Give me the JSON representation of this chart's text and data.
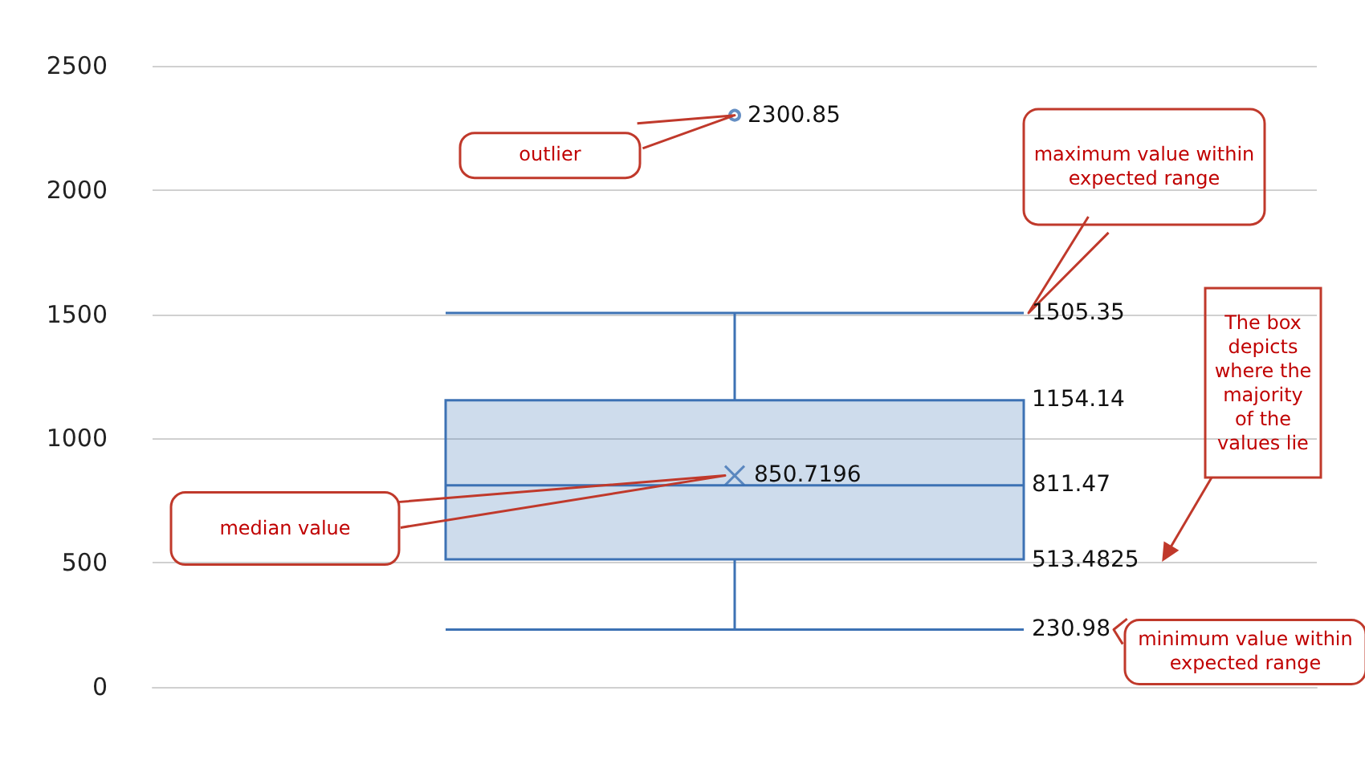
{
  "chart_data": {
    "type": "box",
    "categories": [
      null
    ],
    "boxes": [
      {
        "low": 230.98,
        "q1": 513.4825,
        "median": 811.47,
        "q3": 1154.14,
        "high": 1505.35,
        "mean": 850.7196,
        "outliers": [
          2300.85
        ]
      }
    ],
    "color": "#3d72b4",
    "ylim": [
      0,
      2500
    ],
    "yticks": [
      0,
      500,
      1000,
      1500,
      2000,
      2500
    ],
    "grid": "y",
    "tick_labels": "y",
    "annotations": [
      "outlier",
      "maximum value within expected range",
      "The box depicts where the majority of the values lie",
      "median value",
      "minimum value within expected range",
      "2300.85",
      "1505.35",
      "1154.14",
      "850.7196",
      "811.47",
      "513.4825",
      "230.98"
    ]
  }
}
